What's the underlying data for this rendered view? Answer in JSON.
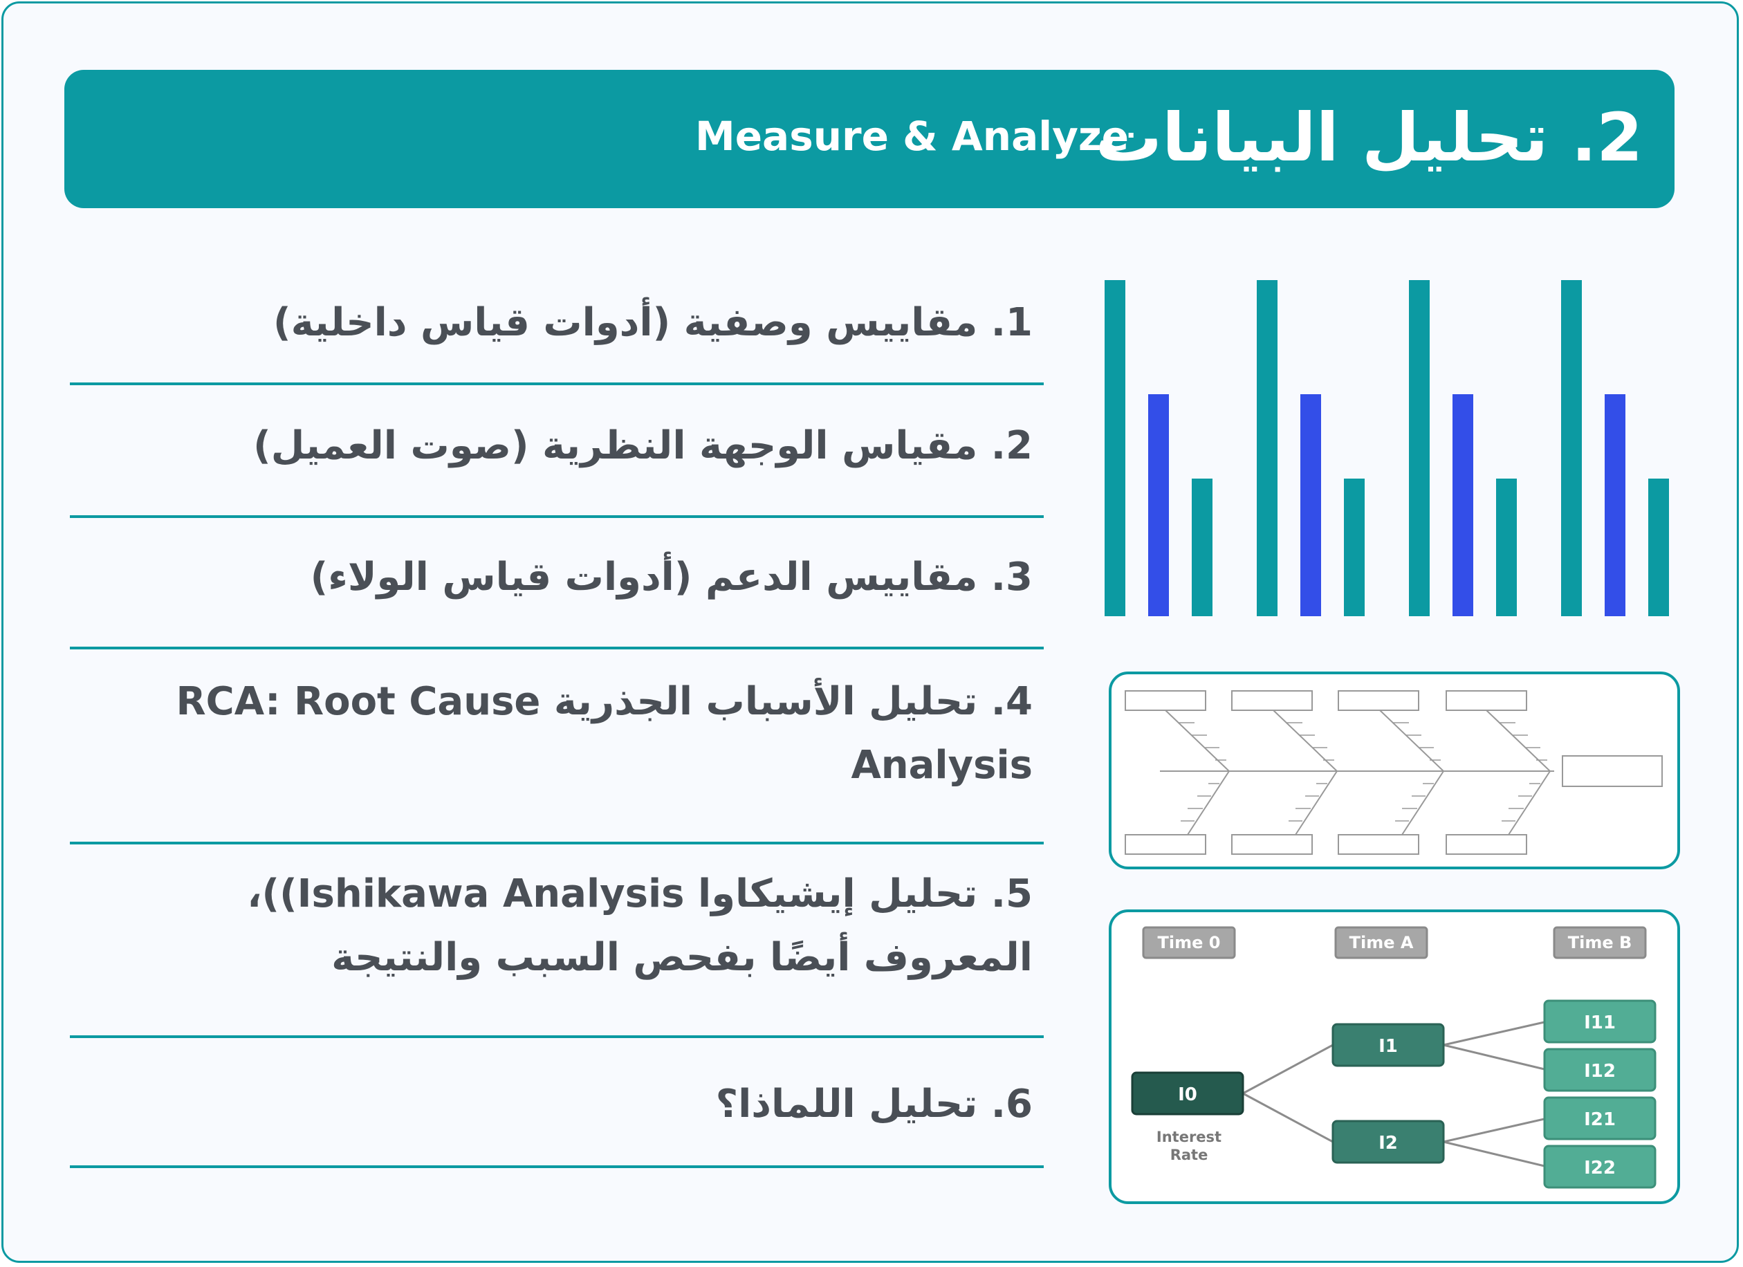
{
  "header": {
    "title": "2. تحليل البيانات",
    "subtitle": "Measure & Analyze"
  },
  "items": [
    {
      "text": "1. مقاييس وصفية (أدوات قياس داخلية)"
    },
    {
      "text": "2. مقياس الوجهة النظرية (صوت العميل)"
    },
    {
      "text": "3. مقاييس الدعم (أدوات قياس الولاء)"
    },
    {
      "text": "4. تحليل الأسباب الجذرية RCA: Root Cause Analysis"
    },
    {
      "text": "5. تحليل إيشيكاوا Ishikawa Analysis))، المعروف أيضًا بفحص السبب والنتيجة"
    },
    {
      "text": "6. تحليل اللماذا؟"
    }
  ],
  "bar_graphic": {
    "groups": 4,
    "levels": [
      1.0,
      0.66,
      0.41
    ],
    "colors": [
      "#0c9aa2",
      "#334ee8",
      "#0c9aa2"
    ]
  },
  "tree": {
    "time_labels": [
      "Time 0",
      "Time A",
      "Time B"
    ],
    "root": "I0",
    "root_caption_1": "Interest",
    "root_caption_2": "Rate",
    "level1": [
      "I1",
      "I2"
    ],
    "level2": [
      "I11",
      "I12",
      "I21",
      "I22"
    ]
  },
  "colors": {
    "accent": "#0c9aa2",
    "bar_blue": "#334ee8",
    "text": "#4a4f56",
    "node_dark": "#255a4e",
    "node_mid": "#3a8070",
    "node_light": "#52ad95",
    "time_label": "#a7a7a7"
  }
}
